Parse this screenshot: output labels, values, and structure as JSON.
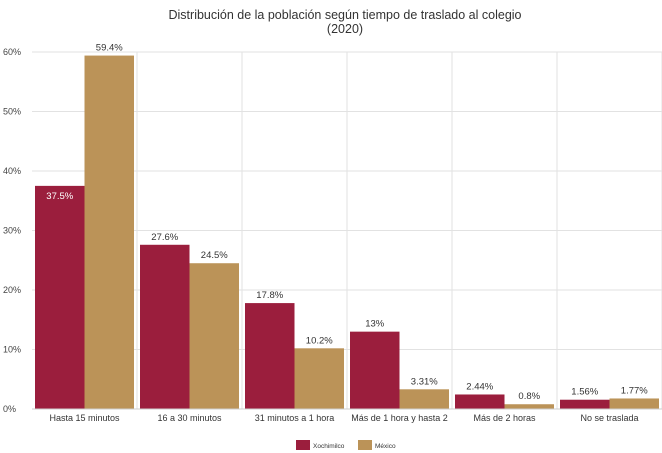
{
  "chart_data": {
    "type": "bar",
    "title": "Distribución de la población según tiempo de traslado al colegio",
    "subtitle": "(2020)",
    "categories": [
      "Hasta 15 minutos",
      "16 a 30 minutos",
      "31 minutos a 1 hora",
      "Más de 1 hora y hasta 2",
      "Más de 2 horas",
      "No se traslada"
    ],
    "series": [
      {
        "name": "Xochimilco",
        "color": "#9b1e3d",
        "values": [
          37.5,
          27.6,
          17.8,
          13,
          2.44,
          1.56
        ],
        "labels": [
          "37.5%",
          "27.6%",
          "17.8%",
          "13%",
          "2.44%",
          "1.56%"
        ]
      },
      {
        "name": "México",
        "color": "#bb9358",
        "values": [
          59.4,
          24.5,
          10.2,
          3.31,
          0.8,
          1.77
        ],
        "labels": [
          "59.4%",
          "24.5%",
          "10.2%",
          "3.31%",
          "0.8%",
          "1.77%"
        ]
      }
    ],
    "ylim": [
      0,
      60
    ],
    "yticks": [
      0,
      10,
      20,
      30,
      40,
      50,
      60
    ],
    "ytick_labels": [
      "0%",
      "10%",
      "20%",
      "30%",
      "40%",
      "50%",
      "60%"
    ],
    "grid": true,
    "legend_position": "bottom"
  }
}
